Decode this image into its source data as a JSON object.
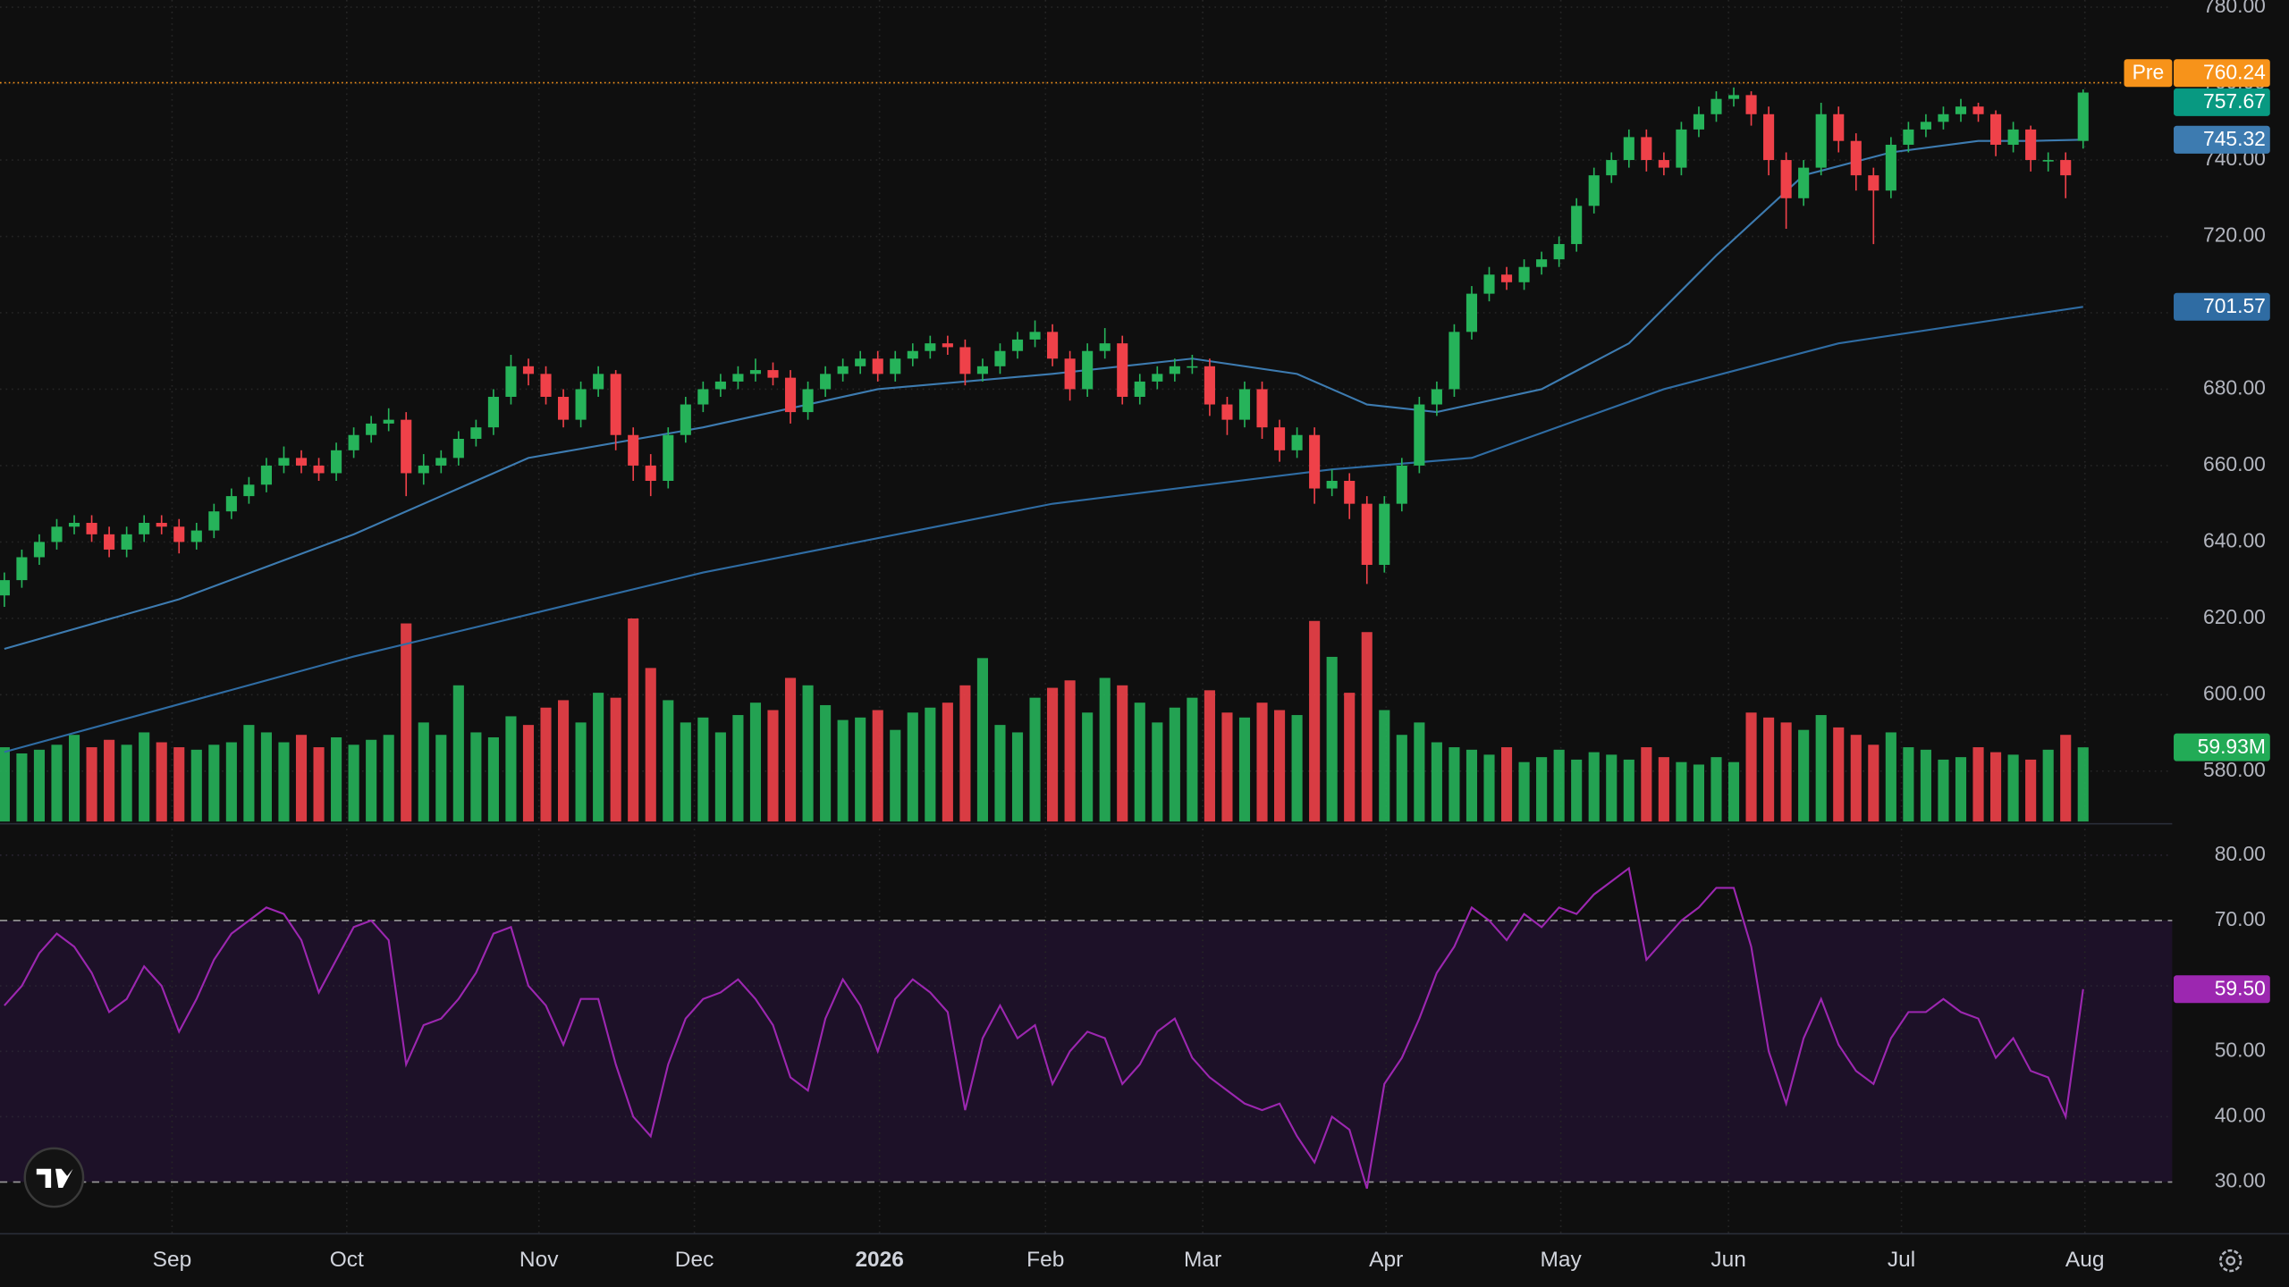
{
  "chart_data": {
    "type": "candlestick",
    "grid": true,
    "xlim": [
      -0.25,
      124.1
    ],
    "xticks": [
      {
        "value": 9.6,
        "label": "Sep"
      },
      {
        "value": 19.6,
        "label": "Oct"
      },
      {
        "value": 30.6,
        "label": "Nov"
      },
      {
        "value": 39.5,
        "label": "Dec"
      },
      {
        "value": 50.1,
        "label": "2026",
        "bold": true
      },
      {
        "value": 59.6,
        "label": "Feb"
      },
      {
        "value": 68.6,
        "label": "Mar"
      },
      {
        "value": 79.1,
        "label": "Apr"
      },
      {
        "value": 89.1,
        "label": "May"
      },
      {
        "value": 98.7,
        "label": "Jun"
      },
      {
        "value": 108.6,
        "label": "Jul"
      },
      {
        "value": 119.1,
        "label": "Aug"
      }
    ],
    "ylim": [
      566.8,
      781.9
    ],
    "yticks": [
      {
        "value": 580,
        "label": "580.00"
      },
      {
        "value": 600,
        "label": "600.00"
      },
      {
        "value": 620,
        "label": "620.00"
      },
      {
        "value": 640,
        "label": "640.00"
      },
      {
        "value": 660,
        "label": "660.00"
      },
      {
        "value": 680,
        "label": "680.00"
      },
      {
        "value": 700,
        "label": "700.00"
      },
      {
        "value": 720,
        "label": "720.00"
      },
      {
        "value": 740,
        "label": "740.00"
      },
      {
        "value": 760,
        "label": "760.00"
      },
      {
        "value": 780,
        "label": "780.00"
      }
    ],
    "up_color": "#26b35a",
    "down_color": "#ef4149",
    "last_price_color": "#089981",
    "open": [
      626,
      630,
      636,
      640,
      644,
      645,
      642,
      638,
      642,
      645,
      644,
      640,
      643,
      648,
      652,
      655,
      660,
      662,
      660,
      658,
      664,
      668,
      671,
      672,
      658,
      660,
      662,
      667,
      670,
      678,
      686,
      684,
      678,
      672,
      680,
      684,
      668,
      660,
      656,
      668,
      676,
      680,
      682,
      684,
      685,
      683,
      674,
      680,
      684,
      686,
      688,
      684,
      688,
      690,
      692,
      691,
      684,
      686,
      690,
      693,
      695,
      688,
      680,
      690,
      692,
      678,
      682,
      684,
      686,
      686,
      676,
      672,
      680,
      670,
      664,
      668,
      654,
      656,
      650,
      634,
      650,
      660,
      676,
      680,
      695,
      705,
      710,
      708,
      712,
      714,
      718,
      728,
      736,
      740,
      746,
      740,
      738,
      748,
      752,
      756,
      757,
      752,
      740,
      730,
      738,
      752,
      745,
      736,
      732,
      744,
      748,
      750,
      752,
      754,
      752,
      744,
      748,
      740,
      740,
      745
    ],
    "high": [
      632,
      638,
      642,
      646,
      647,
      647,
      644,
      644,
      647,
      647,
      646,
      645,
      650,
      654,
      657,
      662,
      665,
      664,
      662,
      666,
      670,
      673,
      675,
      674,
      663,
      664,
      669,
      672,
      680,
      689,
      688,
      686,
      680,
      682,
      686,
      685,
      670,
      663,
      670,
      678,
      682,
      684,
      686,
      688,
      687,
      685,
      682,
      686,
      688,
      690,
      690,
      690,
      692,
      694,
      694,
      693,
      688,
      692,
      695,
      698,
      697,
      690,
      692,
      696,
      694,
      684,
      686,
      688,
      689,
      688,
      678,
      682,
      682,
      672,
      670,
      670,
      659,
      658,
      652,
      652,
      662,
      678,
      682,
      697,
      707,
      712,
      712,
      714,
      716,
      720,
      730,
      738,
      742,
      748,
      748,
      742,
      750,
      754,
      758,
      759,
      758,
      754,
      742,
      740,
      755,
      754,
      747,
      738,
      746,
      750,
      752,
      754,
      756,
      755,
      753,
      750,
      749,
      742,
      742,
      758.5
    ],
    "low": [
      623,
      628,
      634,
      638,
      642,
      640,
      636,
      636,
      640,
      642,
      637,
      638,
      641,
      646,
      650,
      653,
      658,
      658,
      656,
      656,
      662,
      666,
      669,
      652,
      655,
      658,
      660,
      665,
      668,
      676,
      681,
      676,
      670,
      670,
      678,
      664,
      656,
      652,
      654,
      666,
      674,
      678,
      680,
      682,
      681,
      671,
      672,
      678,
      682,
      684,
      682,
      682,
      686,
      688,
      689,
      681,
      682,
      684,
      688,
      691,
      686,
      677,
      678,
      688,
      676,
      676,
      680,
      682,
      684,
      673,
      668,
      670,
      667,
      661,
      662,
      650,
      652,
      646,
      629,
      632,
      648,
      658,
      673,
      678,
      693,
      703,
      706,
      706,
      710,
      712,
      716,
      726,
      734,
      738,
      737,
      736,
      736,
      746,
      750,
      754,
      749,
      736,
      722,
      728,
      736,
      742,
      732,
      718,
      730,
      742,
      746,
      748,
      750,
      750,
      741,
      742,
      737,
      737,
      730,
      743
    ],
    "close": [
      630,
      636,
      640,
      644,
      645,
      642,
      638,
      642,
      645,
      644,
      640,
      643,
      648,
      652,
      655,
      660,
      662,
      660,
      658,
      664,
      668,
      671,
      672,
      658,
      660,
      662,
      667,
      670,
      678,
      686,
      684,
      678,
      672,
      680,
      684,
      668,
      660,
      656,
      668,
      676,
      680,
      682,
      684,
      685,
      683,
      674,
      680,
      684,
      686,
      688,
      684,
      688,
      690,
      692,
      691,
      684,
      686,
      690,
      693,
      695,
      688,
      680,
      690,
      692,
      678,
      682,
      684,
      686,
      686,
      676,
      672,
      680,
      670,
      664,
      668,
      654,
      656,
      650,
      634,
      650,
      660,
      676,
      680,
      695,
      705,
      710,
      708,
      712,
      714,
      718,
      728,
      736,
      740,
      746,
      740,
      738,
      748,
      752,
      756,
      757,
      752,
      740,
      730,
      738,
      752,
      745,
      736,
      732,
      744,
      748,
      750,
      752,
      754,
      752,
      744,
      748,
      740,
      740,
      736,
      757.67
    ],
    "premarket": {
      "label": "Pre",
      "value": 760.24,
      "color": "#f7931a"
    },
    "moving_averages": [
      {
        "x": [
          0,
          10,
          20,
          30,
          40,
          50,
          60,
          68,
          74,
          78,
          82,
          88,
          93,
          98,
          103,
          108,
          113,
          116,
          119
        ],
        "values": [
          612,
          625,
          642,
          662,
          670,
          680,
          684,
          688,
          684,
          676,
          674,
          680,
          692,
          715,
          736,
          742,
          745,
          745,
          745.32
        ],
        "color": "#3d7bb0"
      },
      {
        "x": [
          0,
          20,
          40,
          60,
          76,
          84,
          95,
          105,
          119
        ],
        "values": [
          585,
          610,
          632,
          650,
          659,
          662,
          680,
          692,
          701.57
        ],
        "color": "#2f6ca3"
      }
    ],
    "volume": {
      "ylim": [
        0,
        165
      ],
      "values": [
        60,
        55,
        58,
        62,
        70,
        60,
        66,
        62,
        72,
        64,
        60,
        58,
        62,
        64,
        78,
        72,
        64,
        70,
        60,
        68,
        62,
        66,
        70,
        160,
        80,
        70,
        110,
        72,
        68,
        85,
        78,
        92,
        98,
        80,
        104,
        100,
        164,
        124,
        98,
        80,
        84,
        72,
        86,
        96,
        90,
        116,
        110,
        94,
        82,
        84,
        90,
        74,
        88,
        92,
        96,
        110,
        132,
        78,
        72,
        100,
        108,
        114,
        88,
        116,
        110,
        96,
        80,
        92,
        100,
        106,
        88,
        84,
        96,
        90,
        86,
        162,
        133,
        104,
        153,
        90,
        70,
        80,
        64,
        60,
        58,
        54,
        60,
        48,
        52,
        58,
        50,
        56,
        54,
        50,
        60,
        52,
        48,
        46,
        52,
        48,
        88,
        84,
        80,
        74,
        86,
        76,
        70,
        62,
        72,
        60,
        58,
        50,
        52,
        60,
        56,
        54,
        50,
        58,
        70,
        59.93
      ],
      "last_label": "59.93M",
      "label_color": "#22ab56"
    },
    "rsi": {
      "ylim": [
        22.2,
        84.7
      ],
      "yticks": [
        {
          "value": 30,
          "label": "30.00"
        },
        {
          "value": 40,
          "label": "40.00"
        },
        {
          "value": 50,
          "label": "50.00"
        },
        {
          "value": 60,
          "label": "60.00"
        },
        {
          "value": 70,
          "label": "70.00"
        },
        {
          "value": 80,
          "label": "80.00"
        }
      ],
      "levels": [
        30,
        70
      ],
      "color": "#9c27b0",
      "band_color": "#1d1128",
      "values": [
        57,
        60,
        65,
        68,
        66,
        62,
        56,
        58,
        63,
        60,
        53,
        58,
        64,
        68,
        70,
        72,
        71,
        67,
        59,
        64,
        69,
        70,
        67,
        48,
        54,
        55,
        58,
        62,
        68,
        69,
        60,
        57,
        51,
        58,
        58,
        48,
        40,
        37,
        48,
        55,
        58,
        59,
        61,
        58,
        54,
        46,
        44,
        55,
        61,
        57,
        50,
        58,
        61,
        59,
        56,
        41,
        52,
        57,
        52,
        54,
        45,
        50,
        53,
        52,
        45,
        48,
        53,
        55,
        49,
        46,
        44,
        42,
        41,
        42,
        37,
        33,
        40,
        38,
        29,
        45,
        49,
        55,
        62,
        66,
        72,
        70,
        67,
        71,
        69,
        72,
        71,
        74,
        76,
        78,
        64,
        67,
        70,
        72,
        75,
        75,
        66,
        50,
        42,
        52,
        58,
        51,
        47,
        45,
        52,
        56,
        56,
        58,
        56,
        55,
        49,
        52,
        47,
        46,
        40,
        59.5
      ],
      "last_label": "59.50"
    }
  }
}
